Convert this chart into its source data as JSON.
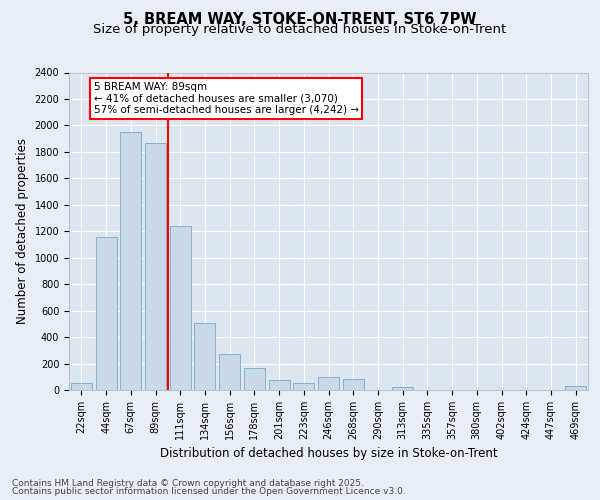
{
  "title1": "5, BREAM WAY, STOKE-ON-TRENT, ST6 7PW",
  "title2": "Size of property relative to detached houses in Stoke-on-Trent",
  "xlabel": "Distribution of detached houses by size in Stoke-on-Trent",
  "ylabel": "Number of detached properties",
  "categories": [
    "22sqm",
    "44sqm",
    "67sqm",
    "89sqm",
    "111sqm",
    "134sqm",
    "156sqm",
    "178sqm",
    "201sqm",
    "223sqm",
    "246sqm",
    "268sqm",
    "290sqm",
    "313sqm",
    "335sqm",
    "357sqm",
    "380sqm",
    "402sqm",
    "424sqm",
    "447sqm",
    "469sqm"
  ],
  "values": [
    50,
    1160,
    1950,
    1870,
    1240,
    510,
    270,
    165,
    75,
    50,
    100,
    85,
    0,
    20,
    0,
    0,
    0,
    0,
    0,
    0,
    30
  ],
  "bar_color": "#c9d9e8",
  "bar_edge_color": "#7aaac8",
  "vline_index": 3,
  "vline_color": "red",
  "annotation_text": "5 BREAM WAY: 89sqm\n← 41% of detached houses are smaller (3,070)\n57% of semi-detached houses are larger (4,242) →",
  "annotation_box_color": "white",
  "annotation_box_edge_color": "red",
  "background_color": "#e8eef5",
  "plot_bg_color": "#dce6f0",
  "grid_color": "white",
  "footer1": "Contains HM Land Registry data © Crown copyright and database right 2025.",
  "footer2": "Contains public sector information licensed under the Open Government Licence v3.0.",
  "ylim": [
    0,
    2400
  ],
  "yticks": [
    0,
    200,
    400,
    600,
    800,
    1000,
    1200,
    1400,
    1600,
    1800,
    2000,
    2200,
    2400
  ],
  "title_fontsize": 10.5,
  "subtitle_fontsize": 9.5,
  "axis_label_fontsize": 8.5,
  "tick_fontsize": 7,
  "footer_fontsize": 6.5,
  "annot_fontsize": 7.5
}
